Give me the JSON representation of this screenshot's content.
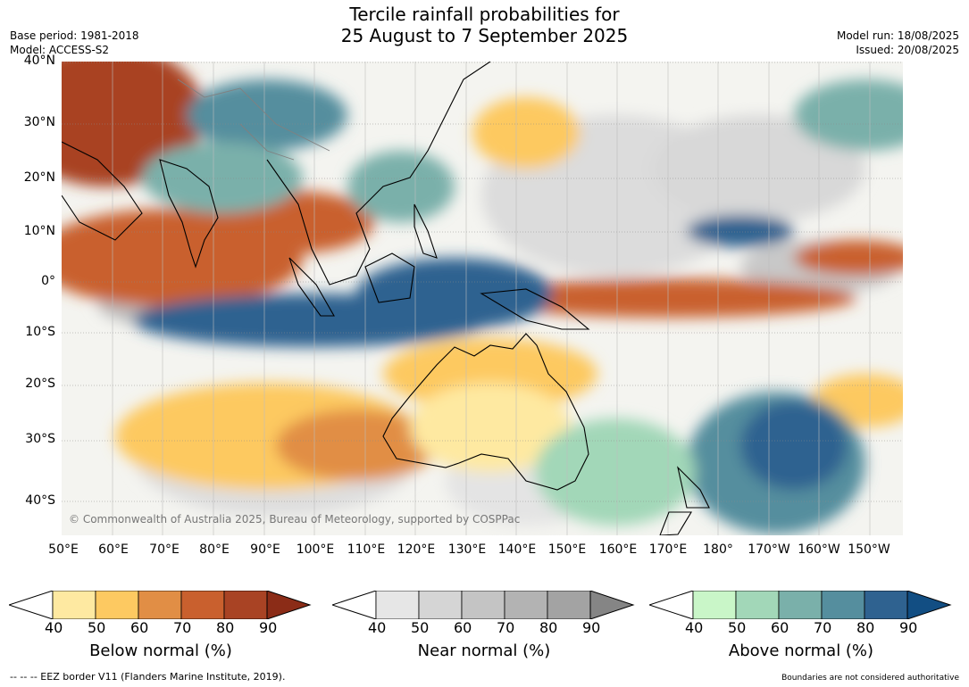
{
  "title": {
    "line1": "Tercile rainfall probabilities for",
    "line2": "25 August to 7 September 2025"
  },
  "meta": {
    "base_period": "Base period: 1981-2018",
    "model": "Model: ACCESS-S2",
    "model_run": "Model run: 18/08/2025",
    "issued": "Issued: 20/08/2025"
  },
  "map": {
    "copyright": "© Commonwealth of Australia 2025, Bureau of Meteorology, supported by COSPPac",
    "lat_labels": [
      "40°N",
      "30°N",
      "20°N",
      "10°N",
      "0°",
      "10°S",
      "20°S",
      "30°S",
      "40°S"
    ],
    "lon_labels": [
      "50°E",
      "60°E",
      "70°E",
      "80°E",
      "90°E",
      "100°E",
      "110°E",
      "120°E",
      "130°E",
      "140°E",
      "150°E",
      "160°E",
      "170°E",
      "180°",
      "170°W",
      "160°W",
      "150°W"
    ]
  },
  "colorbars": [
    {
      "label": "Below normal (%)",
      "ticks": [
        "40",
        "50",
        "60",
        "70",
        "80",
        "90"
      ],
      "colors": [
        "#fee9a1",
        "#fdc961",
        "#e18e45",
        "#c9602e",
        "#a94324",
        "#8b2c17"
      ]
    },
    {
      "label": "Near normal (%)",
      "ticks": [
        "40",
        "50",
        "60",
        "70",
        "80",
        "90"
      ],
      "colors": [
        "#e6e6e6",
        "#d5d5d5",
        "#c4c4c4",
        "#b3b3b3",
        "#a3a3a3",
        "#858585"
      ]
    },
    {
      "label": "Above normal (%)",
      "ticks": [
        "40",
        "50",
        "60",
        "70",
        "80",
        "90"
      ],
      "colors": [
        "#c9f6c8",
        "#a2d7b8",
        "#7ab0aa",
        "#558e9e",
        "#2f6290",
        "#124e83"
      ]
    }
  ],
  "footer": {
    "eez": "--  --  -- EEZ border V11 (Flanders Marine Institute, 2019).",
    "boundaries": "Boundaries are not considered authoritative"
  }
}
